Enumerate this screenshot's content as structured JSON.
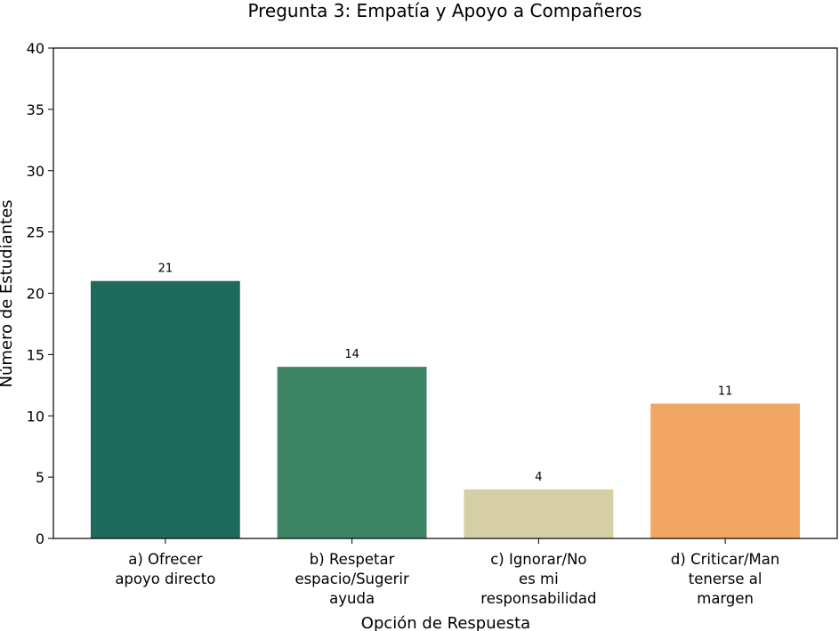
{
  "chart_data": {
    "type": "bar",
    "title": "Pregunta 3: Empatía y Apoyo a Compañeros",
    "xlabel": "Opción de Respuesta",
    "ylabel": "Número de Estudiantes",
    "categories": [
      "a) Ofrecer apoyo directo",
      "b) Respetar espacio/Sugerir ayuda",
      "c) Ignorar/No es mi responsabilidad",
      "d) Criticar/Mantenerse al margen"
    ],
    "category_label_lines": [
      [
        "a) Ofrecer",
        "apoyo directo"
      ],
      [
        "b) Respetar",
        "espacio/Sugerir",
        "ayuda"
      ],
      [
        "c) Ignorar/No",
        "es mi",
        "responsabilidad"
      ],
      [
        "d) Criticar/Man",
        "tenerse al",
        "margen"
      ]
    ],
    "values": [
      21,
      14,
      4,
      11
    ],
    "data_labels": [
      "21",
      "14",
      "4",
      "11"
    ],
    "colors": [
      "#1e6b5c",
      "#3e8565",
      "#d6cfa5",
      "#f2a663"
    ],
    "ylim": [
      0,
      40
    ],
    "yticks": [
      "0",
      "5",
      "10",
      "15",
      "20",
      "25",
      "30",
      "35",
      "40"
    ],
    "grid": false,
    "legend": "none"
  }
}
